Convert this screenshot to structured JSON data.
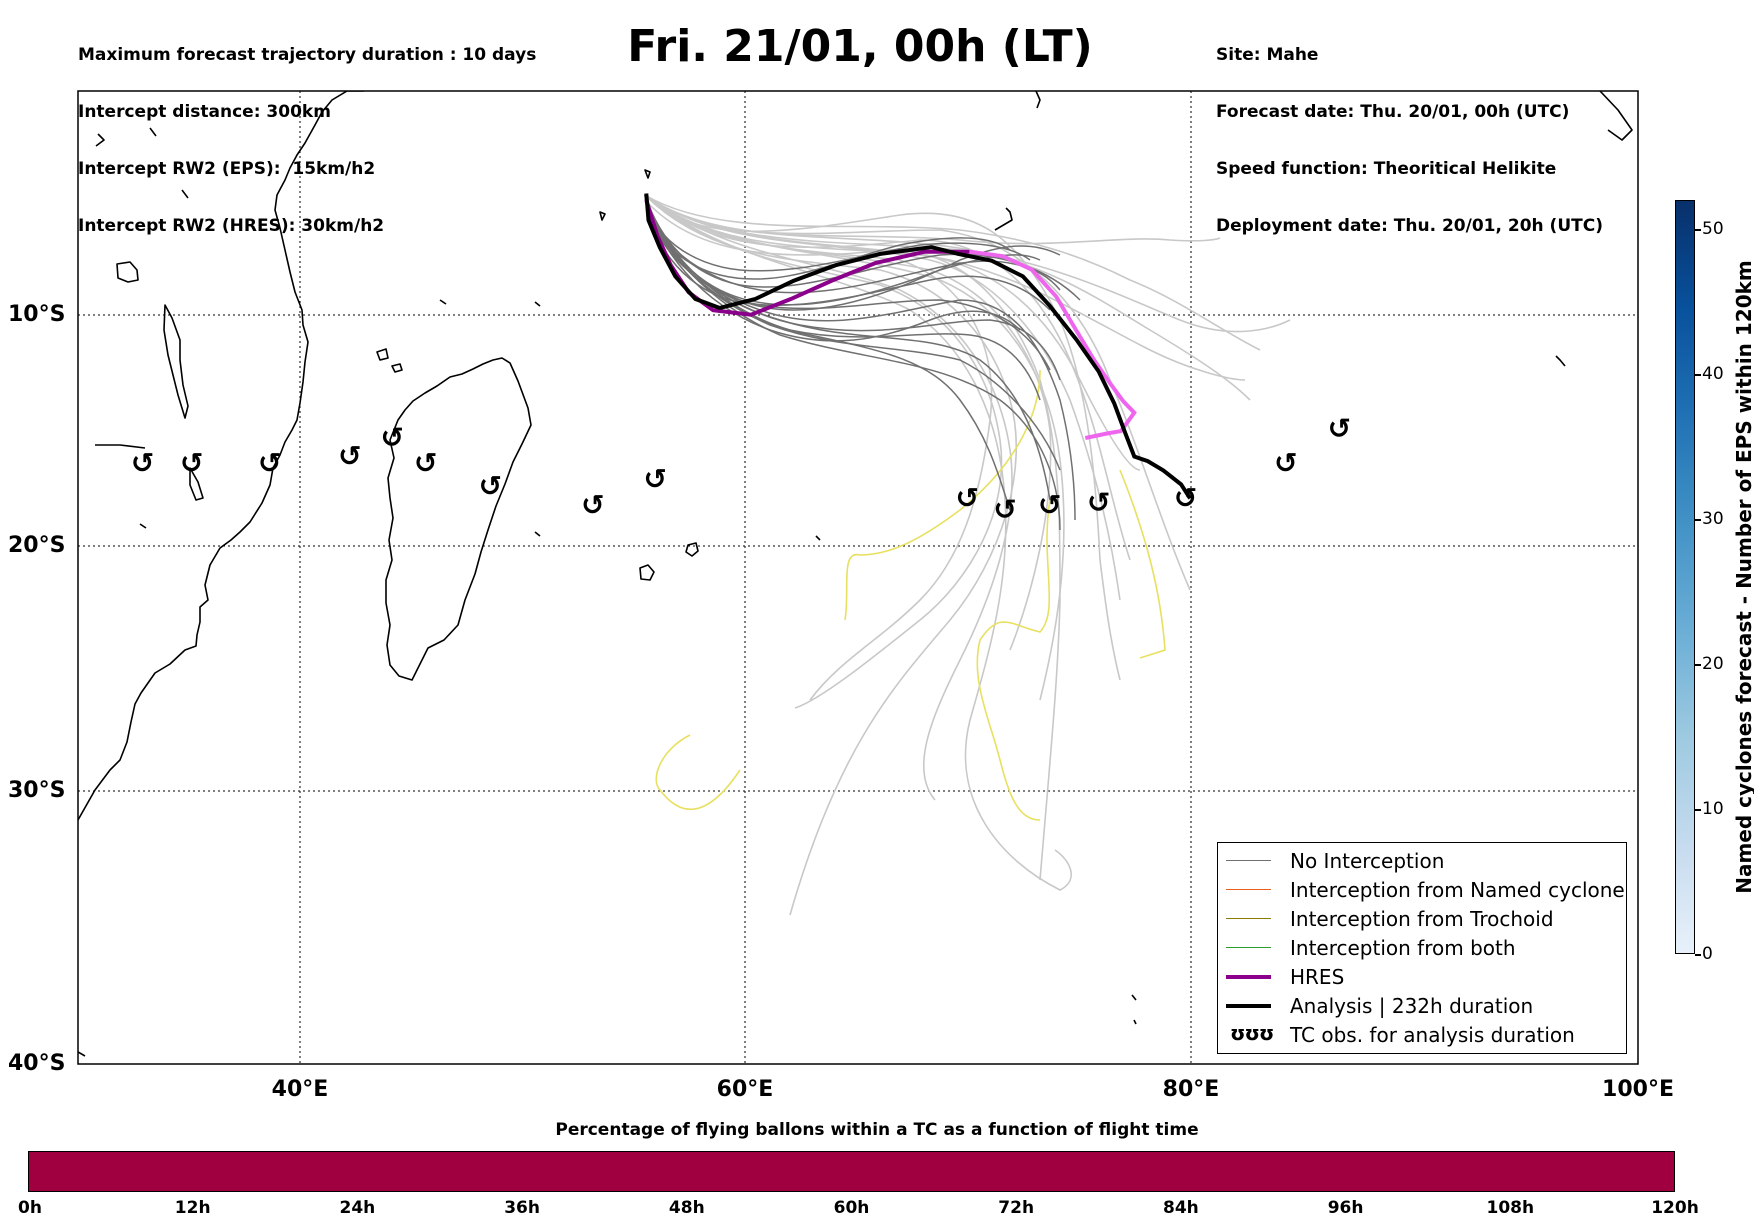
{
  "header_left": [
    "Maximum forecast trajectory duration : 10 days",
    "Intercept distance: 300km",
    "Intercept RW2 (EPS):  15km/h2",
    "Intercept RW2 (HRES): 30km/h2"
  ],
  "title": "Fri. 21/01, 00h (LT)",
  "header_right": [
    "Site: Mahe",
    "Forecast date: Thu. 20/01, 00h (UTC)",
    "Speed function: Theoritical Helikite",
    "Deployment date: Thu. 20/01, 20h (UTC)"
  ],
  "map": {
    "lon_range": [
      30,
      100
    ],
    "lat_range": [
      -40,
      0
    ],
    "lat_labels": [
      "10°S",
      "20°S",
      "30°S",
      "40°S"
    ],
    "lon_labels": [
      "40°E",
      "60°E",
      "80°E",
      "100°E"
    ],
    "gridlines": "dotted",
    "colors": {
      "no_interception": "#666666",
      "eps_light": "#c8c8c8",
      "yellow": "#e8e060",
      "hres": "#8b008b",
      "hres_light": "#ee66ee",
      "analysis": "#000000"
    }
  },
  "legend": {
    "placement": "lower-right",
    "items": [
      {
        "label": "No Interception",
        "color": "#707070",
        "width": 1
      },
      {
        "label": "Interception from Named cyclone",
        "color": "#e8601c",
        "width": 1
      },
      {
        "label": "Interception from Trochoid",
        "color": "#8b7d00",
        "width": 1
      },
      {
        "label": "Interception from both",
        "color": "#2a9d2a",
        "width": 1
      },
      {
        "label": "HRES",
        "color": "#8b008b",
        "width": 4
      },
      {
        "label": "Analysis | 232h duration",
        "color": "#000000",
        "width": 4
      }
    ],
    "tc_obs_label": "TC obs. for analysis duration",
    "tc_obs_glyph": "ʊʊʊ"
  },
  "colorbar_vertical": {
    "label": "Named cyclones forecast - Number of EPS within 120km",
    "min": 0,
    "max": 52,
    "ticks": [
      "0",
      "10",
      "20",
      "30",
      "40",
      "50"
    ]
  },
  "colorbar_horizontal": {
    "title": "Percentage of flying ballons within a TC as a function of flight time",
    "color": "#a0003f",
    "ticks": [
      "0h",
      "12h",
      "24h",
      "36h",
      "48h",
      "60h",
      "72h",
      "84h",
      "96h",
      "108h",
      "120h"
    ]
  },
  "tc_obs_glyph": "↺",
  "tc_observations": [
    {
      "lon": 32.9,
      "lat": -16.5
    },
    {
      "lon": 35.1,
      "lat": -16.5
    },
    {
      "lon": 38.6,
      "lat": -16.5
    },
    {
      "lon": 42.2,
      "lat": -16.2
    },
    {
      "lon": 44.1,
      "lat": -15.4
    },
    {
      "lon": 45.6,
      "lat": -16.5
    },
    {
      "lon": 48.5,
      "lat": -17.5
    },
    {
      "lon": 53.1,
      "lat": -18.3
    },
    {
      "lon": 55.9,
      "lat": -17.2
    },
    {
      "lon": 69.9,
      "lat": -18.0
    },
    {
      "lon": 71.6,
      "lat": -18.5
    },
    {
      "lon": 73.6,
      "lat": -18.3
    },
    {
      "lon": 75.8,
      "lat": -18.2
    },
    {
      "lon": 79.7,
      "lat": -18.0
    },
    {
      "lon": 84.2,
      "lat": -16.5
    },
    {
      "lon": 86.6,
      "lat": -15.0
    }
  ],
  "analysis_track": [
    [
      55.5,
      -4.6
    ],
    [
      55.6,
      -5.8
    ],
    [
      56.1,
      -7.0
    ],
    [
      56.8,
      -8.3
    ],
    [
      57.7,
      -9.3
    ],
    [
      58.8,
      -9.7
    ],
    [
      60.4,
      -9.3
    ],
    [
      62.1,
      -8.5
    ],
    [
      64.0,
      -7.8
    ],
    [
      66.0,
      -7.3
    ],
    [
      68.3,
      -7.0
    ],
    [
      69.5,
      -7.3
    ],
    [
      71.0,
      -7.6
    ],
    [
      72.4,
      -8.3
    ],
    [
      73.6,
      -9.6
    ],
    [
      74.8,
      -11.1
    ],
    [
      75.8,
      -12.5
    ],
    [
      76.5,
      -13.9
    ],
    [
      77.0,
      -15.2
    ],
    [
      77.4,
      -16.2
    ],
    [
      78.0,
      -16.4
    ],
    [
      78.7,
      -16.8
    ],
    [
      79.5,
      -17.4
    ],
    [
      79.9,
      -18.0
    ]
  ],
  "hres_track": [
    [
      55.5,
      -4.9
    ],
    [
      56.0,
      -6.5
    ],
    [
      56.6,
      -7.8
    ],
    [
      57.4,
      -9.0
    ],
    [
      58.5,
      -9.8
    ],
    [
      60.2,
      -10.0
    ],
    [
      62.0,
      -9.3
    ],
    [
      63.8,
      -8.5
    ],
    [
      65.8,
      -7.7
    ],
    [
      68.0,
      -7.2
    ],
    [
      70.0,
      -7.2
    ],
    [
      71.5,
      -7.4
    ],
    [
      72.8,
      -8.0
    ],
    [
      73.9,
      -9.2
    ],
    [
      74.8,
      -10.7
    ],
    [
      75.6,
      -12.0
    ],
    [
      76.3,
      -13.0
    ],
    [
      76.9,
      -13.8
    ],
    [
      77.4,
      -14.3
    ],
    [
      76.8,
      -15.1
    ],
    [
      76.2,
      -15.2
    ],
    [
      75.2,
      -15.4
    ]
  ]
}
